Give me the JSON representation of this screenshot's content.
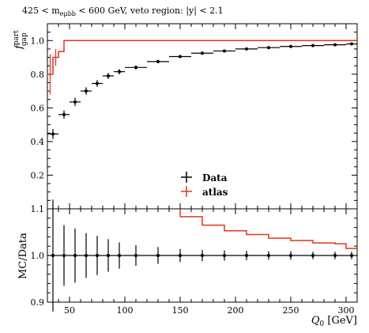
{
  "chart_data": [
    {
      "type": "line",
      "panel": "main",
      "title": "425 < m_eμbb < 600 GeV, veto region: |y| < 2.1",
      "ylabel": "f_gap^part",
      "xlim": [
        30,
        310
      ],
      "ylim": [
        0.0,
        1.1
      ],
      "y_ticks": [
        "0.2",
        "0.4",
        "0.6",
        "0.8",
        "1.0"
      ],
      "y_tick_values": [
        0.2,
        0.4,
        0.6,
        0.8,
        1.0
      ],
      "grid": false,
      "legend_position": "bottom-center",
      "series": [
        {
          "name": "Data",
          "style": "points with error bars",
          "color": "#000000",
          "points": [
            {
              "x": 35,
              "xerr": 5,
              "y": 0.445,
              "yerr": 0.03
            },
            {
              "x": 45,
              "xerr": 5,
              "y": 0.56,
              "yerr": 0.025
            },
            {
              "x": 55,
              "xerr": 5,
              "y": 0.635,
              "yerr": 0.025
            },
            {
              "x": 65,
              "xerr": 5,
              "y": 0.7,
              "yerr": 0.022
            },
            {
              "x": 75,
              "xerr": 5,
              "y": 0.745,
              "yerr": 0.02
            },
            {
              "x": 85,
              "xerr": 5,
              "y": 0.79,
              "yerr": 0.018
            },
            {
              "x": 95,
              "xerr": 5,
              "y": 0.815,
              "yerr": 0.016
            },
            {
              "x": 110,
              "xerr": 10,
              "y": 0.84,
              "yerr": 0.012
            },
            {
              "x": 130,
              "xerr": 10,
              "y": 0.875,
              "yerr": 0.01
            },
            {
              "x": 150,
              "xerr": 10,
              "y": 0.905,
              "yerr": 0.008
            },
            {
              "x": 170,
              "xerr": 10,
              "y": 0.925,
              "yerr": 0.007
            },
            {
              "x": 190,
              "xerr": 10,
              "y": 0.938,
              "yerr": 0.006
            },
            {
              "x": 210,
              "xerr": 10,
              "y": 0.95,
              "yerr": 0.005
            },
            {
              "x": 230,
              "xerr": 10,
              "y": 0.958,
              "yerr": 0.005
            },
            {
              "x": 250,
              "xerr": 10,
              "y": 0.965,
              "yerr": 0.004
            },
            {
              "x": 270,
              "xerr": 10,
              "y": 0.97,
              "yerr": 0.004
            },
            {
              "x": 290,
              "xerr": 10,
              "y": 0.975,
              "yerr": 0.004
            },
            {
              "x": 305,
              "xerr": 5,
              "y": 0.98,
              "yerr": 0.004
            }
          ]
        },
        {
          "name": "atlas",
          "style": "step",
          "color": "#e8341c",
          "edges": [
            30,
            35,
            40,
            45,
            310
          ],
          "values": [
            0.8,
            0.9,
            0.935,
            1.0
          ],
          "points": [
            {
              "x": 32.5,
              "y": 0.8,
              "yerr": 0.12
            },
            {
              "x": 37.5,
              "y": 0.9,
              "yerr": 0.05
            }
          ]
        }
      ]
    },
    {
      "type": "line",
      "panel": "ratio",
      "ylabel": "MC/Data",
      "xlabel": "Q_0 [GeV]",
      "xlim": [
        30,
        310
      ],
      "ylim": [
        0.9,
        1.1
      ],
      "x_ticks": [
        "50",
        "100",
        "150",
        "200",
        "250",
        "300"
      ],
      "x_tick_values": [
        50,
        100,
        150,
        200,
        250,
        300
      ],
      "y_ticks": [
        "0.9",
        "1.0",
        "1.1"
      ],
      "y_tick_values": [
        0.9,
        1.0,
        1.1
      ],
      "grid": false,
      "series": [
        {
          "name": "Data",
          "style": "points with error bars",
          "color": "#000000",
          "points": [
            {
              "x": 35,
              "xerr": 5,
              "y": 1.0,
              "yerr": 0.12
            },
            {
              "x": 45,
              "xerr": 5,
              "y": 1.0,
              "yerr": 0.065
            },
            {
              "x": 55,
              "xerr": 5,
              "y": 1.0,
              "yerr": 0.058
            },
            {
              "x": 65,
              "xerr": 5,
              "y": 1.0,
              "yerr": 0.048
            },
            {
              "x": 75,
              "xerr": 5,
              "y": 1.0,
              "yerr": 0.042
            },
            {
              "x": 85,
              "xerr": 5,
              "y": 1.0,
              "yerr": 0.035
            },
            {
              "x": 95,
              "xerr": 5,
              "y": 1.0,
              "yerr": 0.028
            },
            {
              "x": 110,
              "xerr": 10,
              "y": 1.0,
              "yerr": 0.022
            },
            {
              "x": 130,
              "xerr": 10,
              "y": 1.0,
              "yerr": 0.018
            },
            {
              "x": 150,
              "xerr": 10,
              "y": 1.0,
              "yerr": 0.014
            },
            {
              "x": 170,
              "xerr": 10,
              "y": 1.0,
              "yerr": 0.012
            },
            {
              "x": 190,
              "xerr": 10,
              "y": 1.0,
              "yerr": 0.011
            },
            {
              "x": 210,
              "xerr": 10,
              "y": 1.0,
              "yerr": 0.01
            },
            {
              "x": 230,
              "xerr": 10,
              "y": 1.0,
              "yerr": 0.009
            },
            {
              "x": 250,
              "xerr": 10,
              "y": 1.0,
              "yerr": 0.009
            },
            {
              "x": 270,
              "xerr": 10,
              "y": 1.0,
              "yerr": 0.008
            },
            {
              "x": 290,
              "xerr": 10,
              "y": 1.0,
              "yerr": 0.008
            },
            {
              "x": 305,
              "xerr": 5,
              "y": 1.0,
              "yerr": 0.008
            }
          ]
        },
        {
          "name": "atlas",
          "style": "step",
          "color": "#e8341c",
          "edges": [
            150,
            170,
            190,
            210,
            230,
            250,
            270,
            290,
            300,
            310
          ],
          "values": [
            1.083,
            1.065,
            1.053,
            1.045,
            1.037,
            1.032,
            1.027,
            1.025,
            1.015
          ]
        }
      ]
    }
  ]
}
